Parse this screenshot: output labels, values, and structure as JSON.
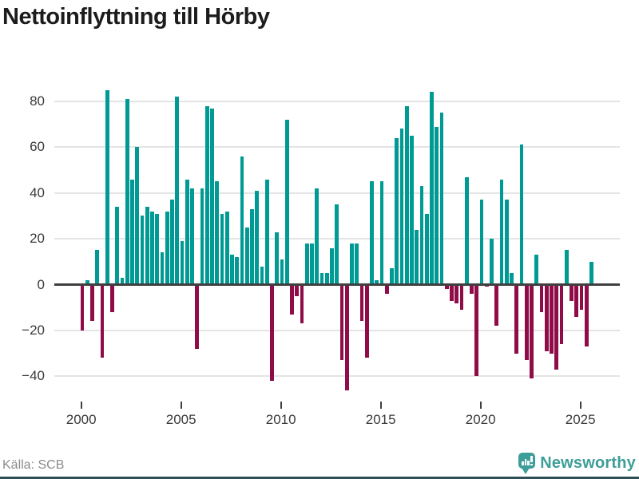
{
  "title": "Nettoinflyttning till Hörby",
  "source": "Källa: SCB",
  "brand": {
    "name": "Newsworthy"
  },
  "colors": {
    "positive": "#009a94",
    "negative": "#900c48",
    "grid": "#e4e4e4",
    "axis": "#3f3f3f",
    "tick_label": "#3a3a3a",
    "source_text": "#8b8b8b",
    "brand_teal": "#3d9e99",
    "bottom_rule": "#2e4f57"
  },
  "chart_data": {
    "type": "bar",
    "title": "Nettoinflyttning till Hörby",
    "frequency": "quarterly",
    "start_year": 2000,
    "start_quarter": 1,
    "values": [
      -20,
      2,
      -16,
      15,
      -32,
      85,
      -12,
      34,
      3,
      81,
      46,
      60,
      30,
      34,
      32,
      31,
      14,
      32,
      37,
      82,
      19,
      46,
      42,
      -28,
      42,
      78,
      77,
      45,
      31,
      32,
      13,
      12,
      56,
      25,
      33,
      41,
      8,
      46,
      -42,
      23,
      11,
      72,
      -13,
      -5,
      -17,
      18,
      18,
      42,
      5,
      5,
      16,
      35,
      -33,
      -46,
      18,
      18,
      -16,
      -32,
      45,
      2,
      45,
      -4,
      7,
      64,
      68,
      78,
      65,
      24,
      43,
      31,
      84,
      69,
      75,
      -2,
      -7,
      -8,
      -11,
      47,
      -4,
      -40,
      37,
      -1,
      20,
      -18,
      46,
      37,
      5,
      -30,
      61,
      -33,
      -41,
      13,
      -12,
      -29,
      -30,
      -37,
      -26,
      15,
      -7,
      -14,
      -11,
      -27,
      10
    ],
    "x_tick_years": [
      2000,
      2005,
      2010,
      2015,
      2020,
      2025
    ],
    "y_ticks": [
      80,
      60,
      40,
      20,
      0,
      -20,
      -40
    ],
    "ylim": [
      -50,
      92
    ],
    "grid": true,
    "legend": false,
    "xlabel": "",
    "ylabel": ""
  }
}
